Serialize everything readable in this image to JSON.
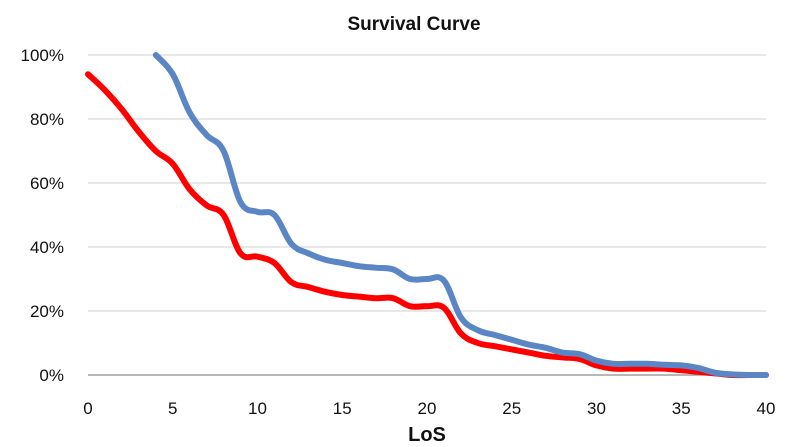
{
  "chart_data": {
    "type": "line",
    "title": "Survival Curve",
    "xlabel": "LoS",
    "ylabel": "",
    "xlim": [
      0,
      40
    ],
    "ylim": [
      0,
      100
    ],
    "x_ticks": [
      {
        "value": 0,
        "label": "0"
      },
      {
        "value": 5,
        "label": "5"
      },
      {
        "value": 10,
        "label": "10"
      },
      {
        "value": 15,
        "label": "15"
      },
      {
        "value": 20,
        "label": "20"
      },
      {
        "value": 25,
        "label": "25"
      },
      {
        "value": 30,
        "label": "30"
      },
      {
        "value": 35,
        "label": "35"
      },
      {
        "value": 40,
        "label": "40"
      }
    ],
    "y_ticks": [
      {
        "value": 0,
        "label": "0%"
      },
      {
        "value": 20,
        "label": "20%"
      },
      {
        "value": 40,
        "label": "40%"
      },
      {
        "value": 60,
        "label": "60%"
      },
      {
        "value": 80,
        "label": "80%"
      },
      {
        "value": 100,
        "label": "100%"
      }
    ],
    "grid": true,
    "legend": "none",
    "series": [
      {
        "color": "#5b86c5",
        "x": [
          4,
          5,
          6,
          7,
          8,
          9,
          10,
          11,
          12,
          13,
          14,
          15,
          16,
          17,
          18,
          19,
          20,
          21,
          22,
          23,
          24,
          25,
          26,
          27,
          28,
          29,
          30,
          31,
          32,
          33,
          34,
          35,
          36,
          37,
          38,
          39,
          40
        ],
        "y": [
          100,
          94,
          82,
          75,
          70,
          54,
          51,
          50,
          41,
          38,
          36,
          35,
          34,
          33.5,
          33,
          30,
          30,
          29.5,
          18,
          14,
          12.5,
          11,
          9.5,
          8.5,
          7,
          6.5,
          4.5,
          3.5,
          3.5,
          3.5,
          3.2,
          3,
          2.2,
          0.7,
          0.2,
          0,
          0
        ]
      },
      {
        "color": "#ff0000",
        "x": [
          0,
          1,
          2,
          3,
          4,
          5,
          6,
          7,
          8,
          9,
          10,
          11,
          12,
          13,
          14,
          15,
          16,
          17,
          18,
          19,
          20,
          21,
          22,
          23,
          24,
          25,
          26,
          27,
          28,
          29,
          30,
          31,
          32,
          33,
          34,
          35,
          36,
          37,
          38,
          39,
          40
        ],
        "y": [
          94,
          89,
          83,
          76,
          70,
          66,
          58,
          53,
          50,
          38,
          37,
          35,
          29,
          27.5,
          26,
          25,
          24.5,
          24,
          24,
          21.5,
          21.5,
          21,
          13,
          10,
          9,
          8,
          7,
          6,
          5.5,
          5,
          3,
          2,
          2,
          2,
          2,
          1.5,
          1,
          0.5,
          0,
          0,
          0
        ]
      }
    ]
  }
}
